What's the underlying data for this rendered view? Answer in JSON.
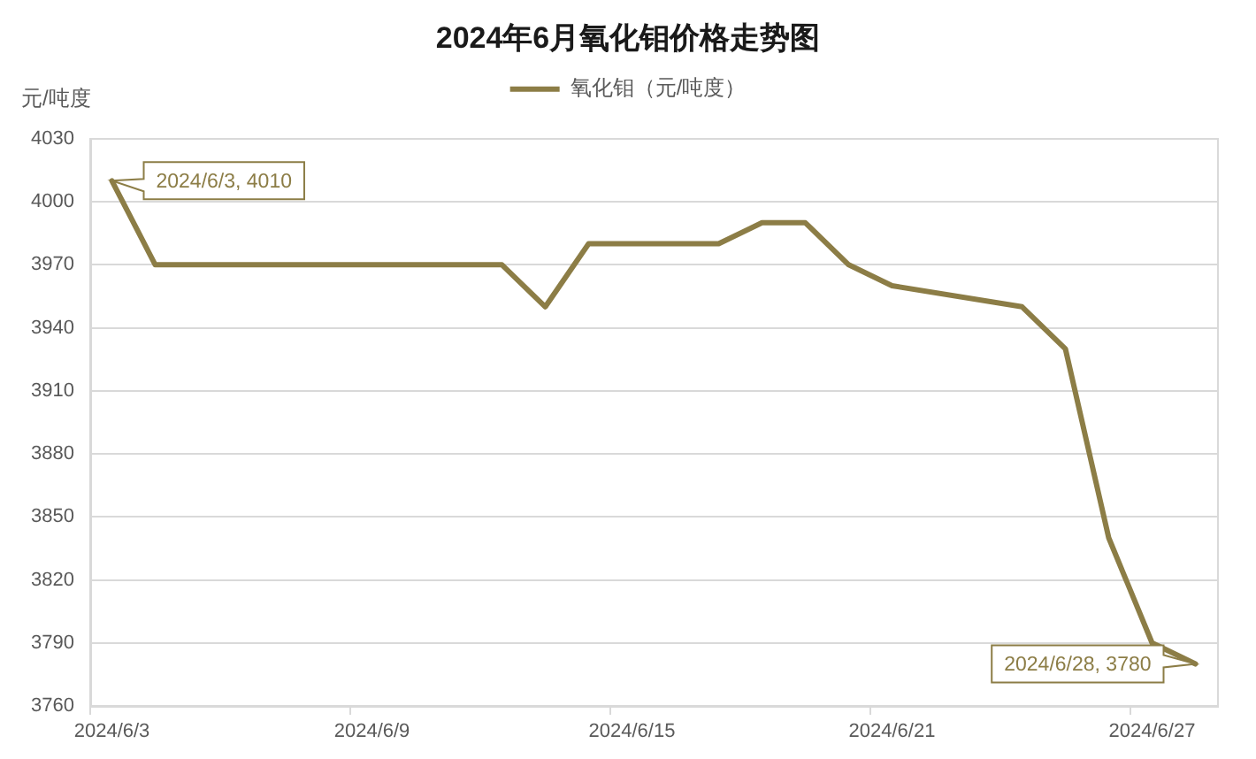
{
  "chart_data": {
    "type": "line",
    "title": "2024年6月氧化钼价格走势图",
    "ylabel": "元/吨度",
    "x": [
      "2024-06-03",
      "2024-06-04",
      "2024-06-05",
      "2024-06-06",
      "2024-06-07",
      "2024-06-10",
      "2024-06-11",
      "2024-06-12",
      "2024-06-13",
      "2024-06-14",
      "2024-06-17",
      "2024-06-18",
      "2024-06-19",
      "2024-06-20",
      "2024-06-21",
      "2024-06-24",
      "2024-06-25",
      "2024-06-26",
      "2024-06-27",
      "2024-06-28"
    ],
    "series": [
      {
        "name": "氧化钼（元/吨度）",
        "color": "#8c7d46",
        "values": [
          4010,
          3970,
          3970,
          3970,
          3970,
          3970,
          3970,
          3970,
          3950,
          3980,
          3980,
          3990,
          3990,
          3970,
          3960,
          3950,
          3930,
          3840,
          3790,
          3780
        ]
      }
    ],
    "xlim": [
      "2024-06-02T12:00",
      "2024-06-28T12:00"
    ],
    "xticks": [
      {
        "value": "2024-06-02T12:00",
        "label": null
      },
      {
        "value": "2024-06-03",
        "label": "2024/6/3"
      },
      {
        "value": "2024-06-08T12:00",
        "label": null
      },
      {
        "value": "2024-06-09",
        "label": "2024/6/9"
      },
      {
        "value": "2024-06-14T12:00",
        "label": null
      },
      {
        "value": "2024-06-15",
        "label": "2024/6/15"
      },
      {
        "value": "2024-06-20T12:00",
        "label": null
      },
      {
        "value": "2024-06-21",
        "label": "2024/6/21"
      },
      {
        "value": "2024-06-26T12:00",
        "label": null
      },
      {
        "value": "2024-06-27",
        "label": "2024/6/27"
      }
    ],
    "ylim": [
      3760,
      4030
    ],
    "yticks": [
      3760,
      3790,
      3820,
      3850,
      3880,
      3910,
      3940,
      3970,
      4000,
      4030
    ],
    "grid": "y",
    "legend": "top",
    "marker": "none",
    "line_style": "solid",
    "annotations": [
      {
        "text": "2024/6/3, 4010",
        "x": "2024-06-03",
        "y": 4010
      },
      {
        "text": "2024/6/28, 3780",
        "x": "2024-06-28",
        "y": 3780
      }
    ]
  }
}
